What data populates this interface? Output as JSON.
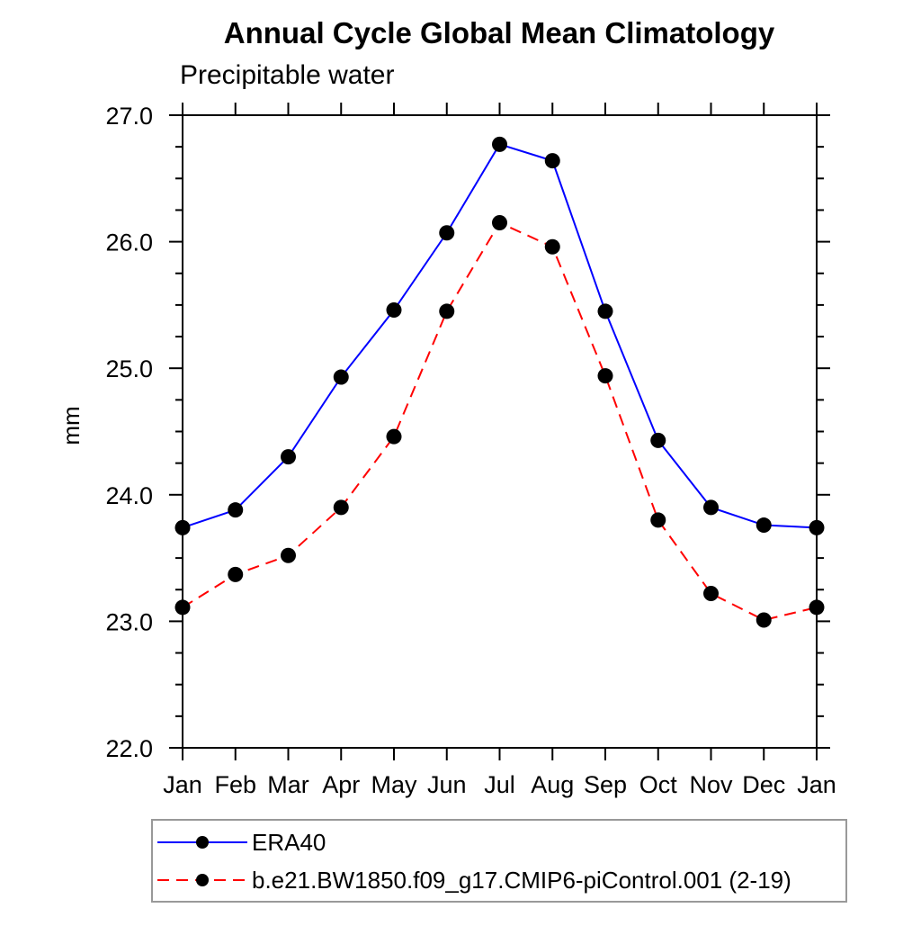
{
  "chart_data": {
    "type": "line",
    "title": "Annual Cycle Global Mean Climatology",
    "subtitle": "Precipitable water",
    "ylabel": "mm",
    "categories": [
      "Jan",
      "Feb",
      "Mar",
      "Apr",
      "May",
      "Jun",
      "Jul",
      "Aug",
      "Sep",
      "Oct",
      "Nov",
      "Dec",
      "Jan"
    ],
    "ylim": [
      22.0,
      27.0
    ],
    "ytick_minor_step": 0.25,
    "yticks": [
      {
        "value": 27.0,
        "label": "27.0"
      },
      {
        "value": 26.0,
        "label": "26.0"
      },
      {
        "value": 25.0,
        "label": "25.0"
      },
      {
        "value": 24.0,
        "label": "24.0"
      },
      {
        "value": 23.0,
        "label": "23.0"
      },
      {
        "value": 22.0,
        "label": "22.0"
      }
    ],
    "grid": false,
    "legend_position": "bottom",
    "series": [
      {
        "name": "ERA40",
        "color": "#0000ff",
        "line_style": "solid",
        "marker": "filled-circle",
        "marker_color": "#000000",
        "values": [
          23.74,
          23.88,
          24.3,
          24.93,
          25.46,
          26.07,
          26.77,
          26.64,
          25.45,
          24.43,
          23.9,
          23.76,
          23.74
        ]
      },
      {
        "name": "b.e21.BW1850.f09_g17.CMIP6-piControl.001 (2-19)",
        "color": "#ff0000",
        "line_style": "dashed",
        "marker": "filled-circle",
        "marker_color": "#000000",
        "values": [
          23.11,
          23.37,
          23.52,
          23.9,
          24.46,
          25.45,
          26.15,
          25.96,
          24.94,
          23.8,
          23.22,
          23.01,
          23.11
        ]
      }
    ]
  }
}
